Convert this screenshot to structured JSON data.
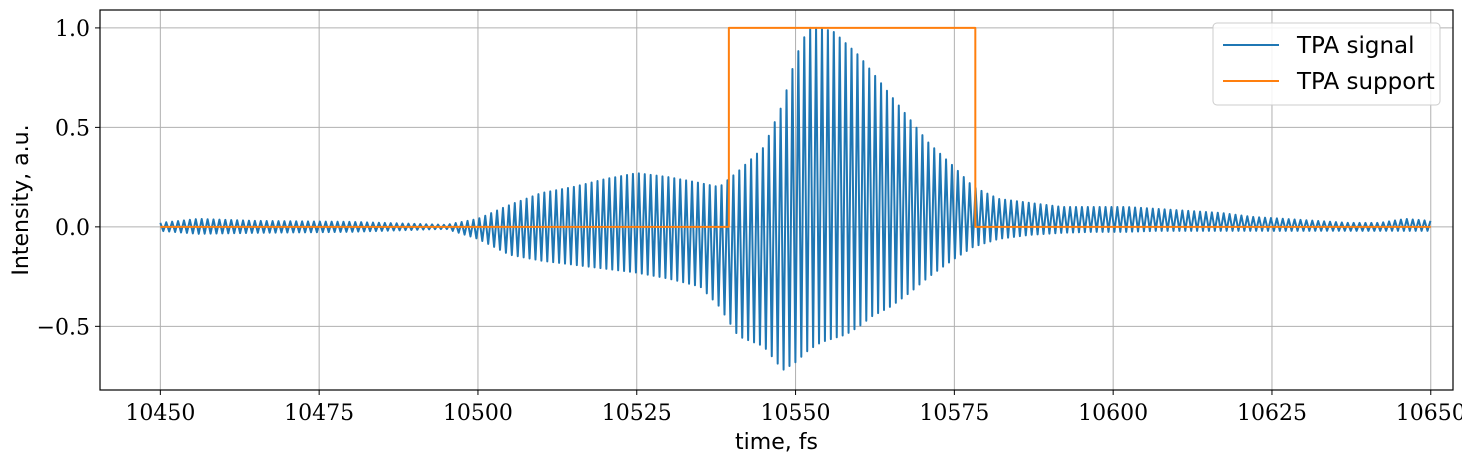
{
  "chart_data": {
    "type": "line",
    "xlabel": "time, fs",
    "ylabel": "Intensity, a.u.",
    "xlim": [
      10440.5,
      10653.5
    ],
    "ylim": [
      -0.82,
      1.09
    ],
    "xticks": [
      10450,
      10475,
      10500,
      10525,
      10550,
      10575,
      10600,
      10625,
      10650
    ],
    "xtick_labels": [
      "10450",
      "10475",
      "10500",
      "10525",
      "10550",
      "10575",
      "10600",
      "10625",
      "10650"
    ],
    "yticks": [
      -0.5,
      0.0,
      0.5,
      1.0
    ],
    "ytick_labels": [
      "−0.5",
      "0.0",
      "0.5",
      "1.0"
    ],
    "grid": true,
    "legend_position": "top-right",
    "series": [
      {
        "name": "TPA signal",
        "color": "#1f77b4",
        "kind": "oscillation",
        "x_start": 10450,
        "x_end": 10650,
        "period_fs": 0.93,
        "envelope": {
          "x": [
            10450,
            10456,
            10465,
            10480,
            10490,
            10495,
            10500,
            10505,
            10510,
            10515,
            10520,
            10525,
            10530,
            10535,
            10538,
            10541,
            10545,
            10548,
            10550,
            10552,
            10554,
            10556,
            10558,
            10560,
            10562,
            10565,
            10568,
            10571,
            10575,
            10578,
            10582,
            10587,
            10592,
            10597,
            10602,
            10607,
            10612,
            10617,
            10622,
            10627,
            10632,
            10637,
            10642,
            10646,
            10650
          ],
          "upper": [
            0.02,
            0.04,
            0.03,
            0.025,
            0.015,
            0.01,
            0.04,
            0.11,
            0.17,
            0.2,
            0.24,
            0.27,
            0.25,
            0.22,
            0.2,
            0.28,
            0.4,
            0.62,
            0.85,
            1.0,
            1.0,
            0.98,
            0.92,
            0.86,
            0.78,
            0.66,
            0.54,
            0.42,
            0.3,
            0.2,
            0.14,
            0.12,
            0.1,
            0.1,
            0.1,
            0.09,
            0.08,
            0.07,
            0.05,
            0.04,
            0.03,
            0.02,
            0.02,
            0.04,
            0.03
          ],
          "lower": [
            -0.02,
            -0.035,
            -0.03,
            -0.025,
            -0.015,
            -0.01,
            -0.06,
            -0.14,
            -0.17,
            -0.19,
            -0.21,
            -0.23,
            -0.26,
            -0.3,
            -0.4,
            -0.55,
            -0.6,
            -0.72,
            -0.68,
            -0.62,
            -0.58,
            -0.56,
            -0.54,
            -0.5,
            -0.45,
            -0.4,
            -0.33,
            -0.25,
            -0.16,
            -0.1,
            -0.06,
            -0.04,
            -0.03,
            -0.025,
            -0.025,
            -0.02,
            -0.02,
            -0.02,
            -0.02,
            -0.02,
            -0.02,
            -0.02,
            -0.02,
            -0.02,
            -0.02
          ]
        }
      },
      {
        "name": "TPA support",
        "color": "#ff7f0e",
        "kind": "step",
        "x": [
          10450,
          10539.5,
          10539.5,
          10578.3,
          10578.3,
          10650
        ],
        "y": [
          0,
          0,
          1,
          1,
          0,
          0
        ]
      }
    ]
  }
}
